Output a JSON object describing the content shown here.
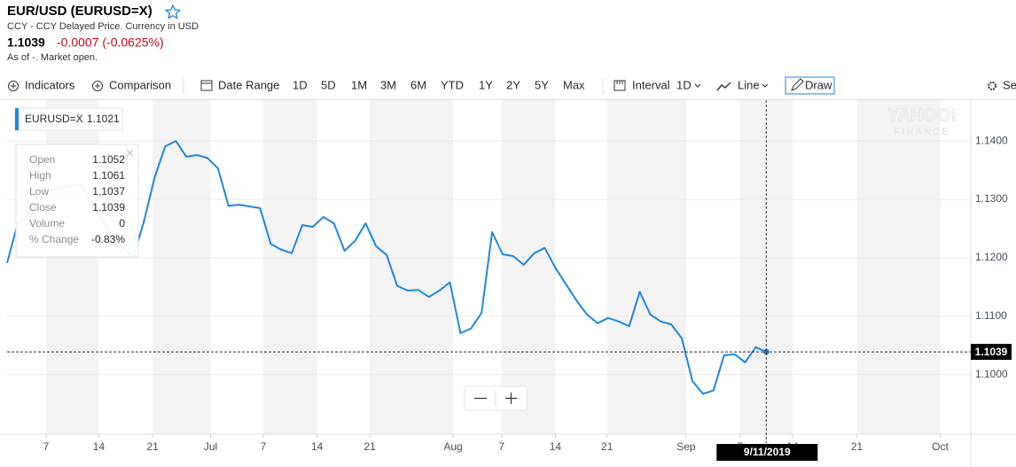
{
  "header": {
    "title": "EUR/USD (EURUSD=X)",
    "subtitle": "CCY - CCY Delayed Price. Currency in USD",
    "price": "1.1039",
    "change": "-0.0007 (-0.0625%)",
    "status": "As of -. Market open."
  },
  "toolbar": [
    "Indicators",
    "Comparison",
    "Date Range",
    "1D",
    "5D",
    "1M",
    "3M",
    "6M",
    "YTD",
    "1Y",
    "2Y",
    "5Y",
    "Max",
    "Interval",
    "1D",
    "Line",
    "Draw",
    "Se"
  ],
  "tooltip": [
    [
      "Open",
      "1.1052"
    ],
    [
      "High",
      "1.1061"
    ],
    [
      "Low",
      "1.1037"
    ],
    [
      "Close",
      "1.1039"
    ],
    [
      "Volume",
      "0"
    ],
    [
      "% Change",
      "-0.83%"
    ]
  ],
  "chart_data": {
    "type": "line",
    "watermark": [
      "YAHOO!",
      "FINANCE"
    ],
    "series": [
      {
        "name": "EURUSD=X",
        "legend_value": 1.1021,
        "color": "#1f86e0",
        "x": [
          0,
          1,
          2,
          3,
          4,
          5,
          6,
          7,
          8,
          9,
          10,
          11,
          12,
          13,
          14,
          15,
          16,
          17,
          18,
          19,
          20,
          21,
          22,
          23,
          24,
          25,
          26,
          27,
          28,
          29,
          30,
          31,
          32,
          33,
          34,
          35,
          36,
          37,
          38,
          39,
          40,
          41,
          42,
          43,
          44,
          45,
          46,
          47,
          48,
          49,
          50,
          51,
          52,
          53,
          54,
          55,
          56,
          57,
          58,
          59,
          60,
          61,
          62,
          63,
          64,
          65,
          66,
          67,
          68,
          69,
          70,
          71,
          72
        ],
        "values": [
          1.1191,
          1.1259,
          1.1274,
          1.1295,
          1.1314,
          1.132,
          1.1323,
          1.1326,
          1.1295,
          1.1265,
          1.1239,
          1.1217,
          1.1202,
          1.1264,
          1.1338,
          1.1391,
          1.14,
          1.1373,
          1.1376,
          1.1371,
          1.1353,
          1.1289,
          1.1291,
          1.1288,
          1.1285,
          1.1224,
          1.1214,
          1.1208,
          1.1256,
          1.1253,
          1.127,
          1.1259,
          1.1212,
          1.1229,
          1.1259,
          1.122,
          1.1205,
          1.1152,
          1.1144,
          1.1145,
          1.1133,
          1.1144,
          1.1158,
          1.1071,
          1.1079,
          1.1106,
          1.1244,
          1.1206,
          1.1203,
          1.1188,
          1.1208,
          1.1217,
          1.1183,
          1.1155,
          1.1127,
          1.1103,
          1.1088,
          1.1097,
          1.1091,
          1.1083,
          1.1142,
          1.1103,
          1.1091,
          1.1086,
          1.1062,
          1.0989,
          1.0967,
          1.0973,
          1.1033,
          1.1035,
          1.1021,
          1.1047,
          1.1039
        ]
      }
    ],
    "xlim": [
      0,
      91.4
    ],
    "xticks": [
      {
        "value": 3.7,
        "label": "7"
      },
      {
        "value": 8.7,
        "label": "14"
      },
      {
        "value": 13.8,
        "label": "21"
      },
      {
        "value": 19.3,
        "label": "Jul"
      },
      {
        "value": 24.3,
        "label": "7"
      },
      {
        "value": 29.4,
        "label": "14"
      },
      {
        "value": 34.4,
        "label": "21"
      },
      {
        "value": 42.3,
        "label": "Aug"
      },
      {
        "value": 46.9,
        "label": "7"
      },
      {
        "value": 52.0,
        "label": "14"
      },
      {
        "value": 56.9,
        "label": "21"
      },
      {
        "value": 64.4,
        "label": "Sep"
      },
      {
        "value": 69.5,
        "label": "7"
      },
      {
        "value": 74.5,
        "label": "14"
      },
      {
        "value": 80.6,
        "label": "21"
      },
      {
        "value": 88.5,
        "label": "Oct"
      }
    ],
    "ylim": [
      1.0898,
      1.147
    ],
    "yticks": [
      {
        "value": 1.1,
        "label": "1.1000"
      },
      {
        "value": 1.11,
        "label": "1.1100"
      },
      {
        "value": 1.12,
        "label": "1.1200"
      },
      {
        "value": 1.13,
        "label": "1.1300"
      },
      {
        "value": 1.14,
        "label": "1.1400"
      }
    ],
    "grid": true,
    "current_price": 1.1039,
    "crosshair_date": "9/11/2019"
  }
}
